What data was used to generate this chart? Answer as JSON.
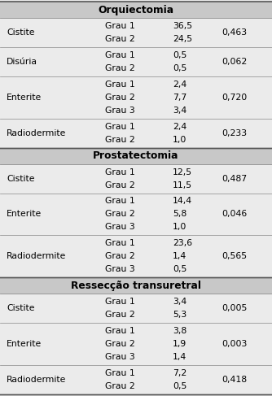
{
  "sections": [
    {
      "header": "Orquiectomia",
      "rows": [
        {
          "complication": "Cistite",
          "grades": [
            "Grau 1",
            "Grau 2"
          ],
          "values": [
            "36,5",
            "24,5"
          ],
          "pvalue": "0,463"
        },
        {
          "complication": "Disúria",
          "grades": [
            "Grau 1",
            "Grau 2"
          ],
          "values": [
            "0,5",
            "0,5"
          ],
          "pvalue": "0,062"
        },
        {
          "complication": "Enterite",
          "grades": [
            "Grau 1",
            "Grau 2",
            "Grau 3"
          ],
          "values": [
            "2,4",
            "7,7",
            "3,4"
          ],
          "pvalue": "0,720"
        },
        {
          "complication": "Radiodermite",
          "grades": [
            "Grau 1",
            "Grau 2"
          ],
          "values": [
            "2,4",
            "1,0"
          ],
          "pvalue": "0,233"
        }
      ]
    },
    {
      "header": "Prostatectomia",
      "rows": [
        {
          "complication": "Cistite",
          "grades": [
            "Grau 1",
            "Grau 2"
          ],
          "values": [
            "12,5",
            "11,5"
          ],
          "pvalue": "0,487"
        },
        {
          "complication": "Enterite",
          "grades": [
            "Grau 1",
            "Grau 2",
            "Grau 3"
          ],
          "values": [
            "14,4",
            "5,8",
            "1,0"
          ],
          "pvalue": "0,046"
        },
        {
          "complication": "Radiodermite",
          "grades": [
            "Grau 1",
            "Grau 2",
            "Grau 3"
          ],
          "values": [
            "23,6",
            "1,4",
            "0,5"
          ],
          "pvalue": "0,565"
        }
      ]
    },
    {
      "header": "Ressecção transuretral",
      "rows": [
        {
          "complication": "Cistite",
          "grades": [
            "Grau 1",
            "Grau 2"
          ],
          "values": [
            "3,4",
            "5,3"
          ],
          "pvalue": "0,005"
        },
        {
          "complication": "Enterite",
          "grades": [
            "Grau 1",
            "Grau 2",
            "Grau 3"
          ],
          "values": [
            "3,8",
            "1,9",
            "1,4"
          ],
          "pvalue": "0,003"
        },
        {
          "complication": "Radiodermite",
          "grades": [
            "Grau 1",
            "Grau 2"
          ],
          "values": [
            "7,2",
            "0,5"
          ],
          "pvalue": "0,418"
        }
      ]
    }
  ],
  "header_bg": "#c8c8c8",
  "row_bg": "#ebebeb",
  "border_color": "#888888",
  "thick_border": "#555555",
  "font_size": 7.8,
  "header_font_size": 8.8,
  "fig_width": 3.34,
  "fig_height": 4.87,
  "col_comp": 0.025,
  "col_grade": 0.385,
  "col_val": 0.635,
  "col_p": 0.815
}
